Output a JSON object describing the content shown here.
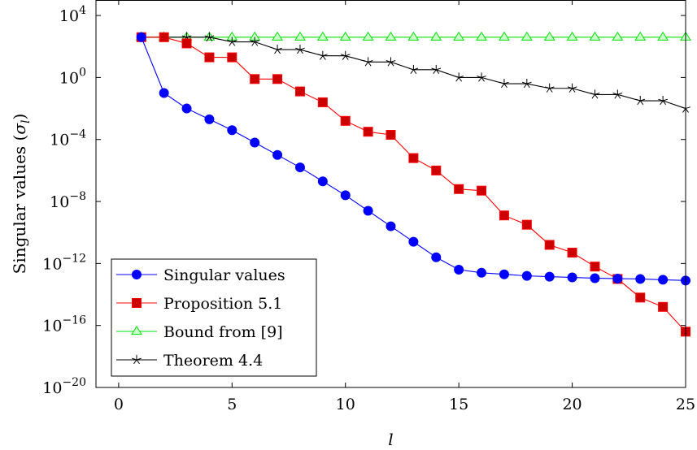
{
  "chart_data": {
    "type": "line",
    "title": "",
    "xlabel": "l",
    "ylabel_text": "Singular values (",
    "ylabel_symbol": "σ",
    "ylabel_subscript": "l",
    "ylabel_close": ")",
    "y_scale": "log",
    "xlim": [
      -1,
      25
    ],
    "ylim_exponent": [
      -20,
      5
    ],
    "x_ticks": [
      0,
      5,
      10,
      15,
      20,
      25
    ],
    "y_tick_exponents": [
      -20,
      -16,
      -12,
      -8,
      -4,
      0,
      4
    ],
    "y_tick_base": "10",
    "grid": false,
    "legend_position": "bottom-left",
    "x": [
      1,
      2,
      3,
      4,
      5,
      6,
      7,
      8,
      9,
      10,
      11,
      12,
      13,
      14,
      15,
      16,
      17,
      18,
      19,
      20,
      21,
      22,
      23,
      24,
      25
    ],
    "series": [
      {
        "name": "Singular values",
        "color": "#0000ff",
        "marker": "circle",
        "log10_values": [
          2.6,
          -1.0,
          -2.0,
          -2.7,
          -3.4,
          -4.2,
          -5.0,
          -5.8,
          -6.7,
          -7.6,
          -8.6,
          -9.6,
          -10.6,
          -11.6,
          -12.4,
          -12.6,
          -12.7,
          -12.8,
          -12.85,
          -12.9,
          -12.95,
          -12.98,
          -13.0,
          -13.05,
          -13.1
        ]
      },
      {
        "name": "Proposition 5.1",
        "color": "#ff0000",
        "marker_fill": "#cc0000",
        "marker": "square",
        "log10_values": [
          2.6,
          2.6,
          2.2,
          1.3,
          1.3,
          -0.1,
          -0.1,
          -0.9,
          -1.6,
          -2.8,
          -3.5,
          -3.7,
          -5.2,
          -6.0,
          -7.2,
          -7.3,
          -8.9,
          -9.5,
          -10.8,
          -11.3,
          -12.2,
          -13.0,
          -14.2,
          -14.8,
          -16.4
        ]
      },
      {
        "name": "Bound from [9]",
        "color": "#00e000",
        "marker": "triangle",
        "log10_values": [
          2.6,
          2.6,
          2.6,
          2.6,
          2.6,
          2.6,
          2.6,
          2.6,
          2.6,
          2.6,
          2.6,
          2.6,
          2.6,
          2.6,
          2.6,
          2.6,
          2.6,
          2.6,
          2.6,
          2.6,
          2.6,
          2.6,
          2.6,
          2.6,
          2.6
        ]
      },
      {
        "name": "Theorem 4.4",
        "color": "#000000",
        "marker": "star",
        "log10_values": [
          2.6,
          2.6,
          2.6,
          2.6,
          2.3,
          2.3,
          1.8,
          1.8,
          1.4,
          1.4,
          1.0,
          1.0,
          0.5,
          0.5,
          0.0,
          0.0,
          -0.4,
          -0.4,
          -0.7,
          -0.7,
          -1.1,
          -1.1,
          -1.5,
          -1.5,
          -2.0
        ]
      }
    ]
  }
}
